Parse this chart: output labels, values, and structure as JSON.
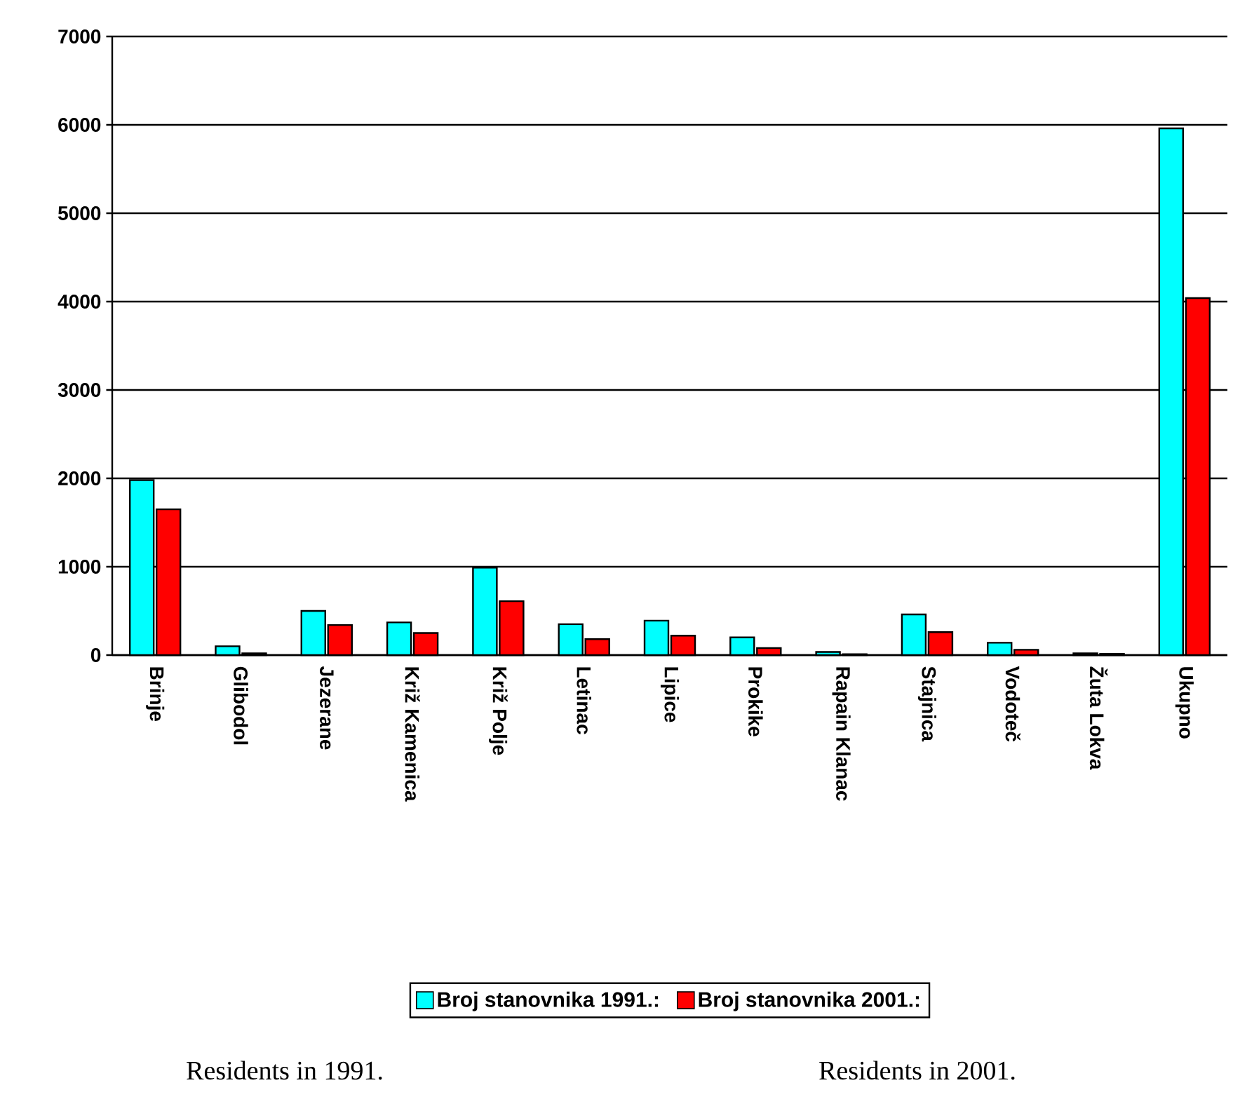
{
  "chart_data": {
    "type": "bar",
    "categories": [
      "Brinje",
      "Glibodol",
      "Jezerane",
      "Križ Kamenica",
      "Križ Polje",
      "Letinac",
      "Lipice",
      "Prokike",
      "Rapain Klanac",
      "Stajnica",
      "Vodoteč",
      "Žuta Lokva",
      "Ukupno"
    ],
    "series": [
      {
        "name": "Broj stanovnika 1991.:",
        "color": "#00ffff",
        "values": [
          1980,
          100,
          500,
          370,
          990,
          350,
          390,
          200,
          35,
          460,
          140,
          20,
          5960
        ]
      },
      {
        "name": "Broj stanovnika 2001.:",
        "color": "#ff0000",
        "values": [
          1650,
          20,
          340,
          250,
          610,
          180,
          220,
          80,
          10,
          260,
          60,
          15,
          4040
        ]
      }
    ],
    "ylim": [
      0,
      7000
    ],
    "yticks": [
      0,
      1000,
      2000,
      3000,
      4000,
      5000,
      6000,
      7000
    ],
    "grid": "y",
    "legend": "bottom",
    "annotations": [
      "Residents in 1991.",
      "Residents in 2001."
    ]
  }
}
